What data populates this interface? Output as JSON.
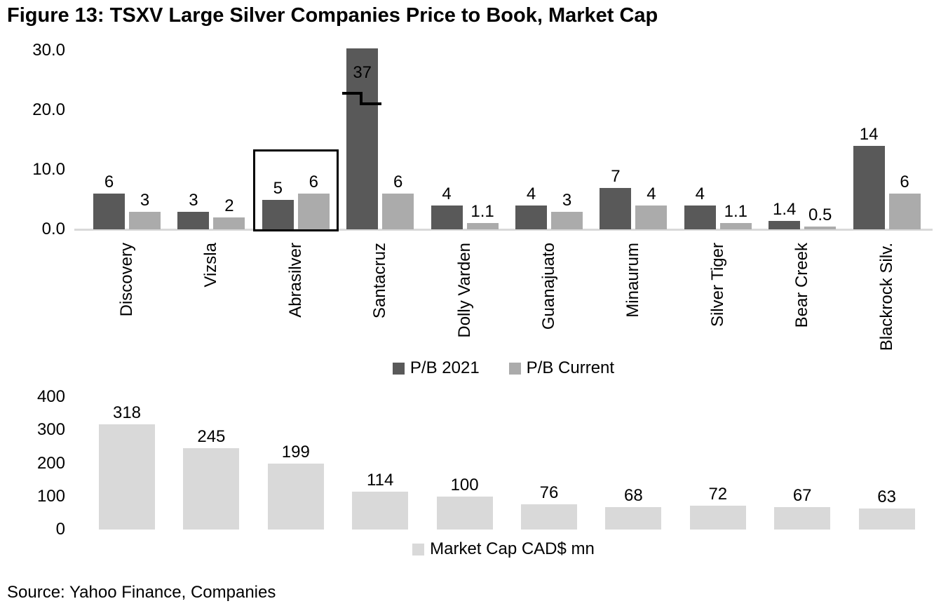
{
  "figure": {
    "title": "Figure 13: TSXV Large Silver Companies Price to Book, Market Cap",
    "source": "Source: Yahoo Finance, Companies"
  },
  "colors": {
    "pb_2021": "#595959",
    "pb_current": "#ababab",
    "market_cap": "#d9d9d9",
    "axis_line": "#d9d9d9",
    "text": "#000000",
    "annotation": "#000000"
  },
  "chart_data": [
    {
      "type": "bar",
      "title": "TSXV Large Silver Companies Price to Book",
      "categories": [
        "Discovery",
        "Vizsla",
        "Abrasilver",
        "Santacruz",
        "Dolly Varden",
        "Guanajuato",
        "Minaurum",
        "Silver Tiger",
        "Bear Creek",
        "Blackrock Silv."
      ],
      "series": [
        {
          "name": "P/B 2021",
          "color_key": "pb_2021",
          "values": [
            6,
            3,
            5,
            37,
            4,
            4,
            7,
            4,
            1.4,
            14
          ],
          "labels": [
            "6",
            "3",
            "5",
            "37",
            "4",
            "4",
            "7",
            "4",
            "1.4",
            "14"
          ]
        },
        {
          "name": "P/B Current",
          "color_key": "pb_current",
          "values": [
            3,
            2,
            6,
            6,
            1.1,
            3,
            4,
            1.1,
            0.5,
            6
          ],
          "labels": [
            "3",
            "2",
            "6",
            "6",
            "1.1",
            "3",
            "4",
            "1.1",
            "0.5",
            "6"
          ]
        }
      ],
      "ylim": [
        0,
        30
      ],
      "yticks": [
        {
          "value": 0,
          "label": "0.0"
        },
        {
          "value": 10,
          "label": "10.0"
        },
        {
          "value": 20,
          "label": "20.0"
        },
        {
          "value": 30,
          "label": "30.0"
        }
      ],
      "grid": false,
      "legend_position": "bottom",
      "x_tick_labels_visible": true,
      "annotations": {
        "highlight_box": {
          "category": "Abrasilver",
          "note": "black rectangle drawn around both Abrasilver bars and their labels"
        },
        "axis_break": {
          "category": "Santacruz",
          "series": "P/B 2021",
          "note": "bar exceeds axis maximum, clipped at top with break mark; value label 37 shown inside bar"
        }
      }
    },
    {
      "type": "bar",
      "title": "Market Cap",
      "categories": [
        "Discovery",
        "Vizsla",
        "Abrasilver",
        "Santacruz",
        "Dolly Varden",
        "Guanajuato",
        "Minaurum",
        "Silver Tiger",
        "Bear Creek",
        "Blackrock Silv."
      ],
      "series": [
        {
          "name": "Market Cap CAD$ mn",
          "color_key": "market_cap",
          "values": [
            318,
            245,
            199,
            114,
            100,
            76,
            68,
            72,
            67,
            63
          ],
          "labels": [
            "318",
            "245",
            "199",
            "114",
            "100",
            "76",
            "68",
            "72",
            "67",
            "63"
          ]
        }
      ],
      "ylim": [
        0,
        400
      ],
      "yticks": [
        {
          "value": 0,
          "label": "0"
        },
        {
          "value": 100,
          "label": "100"
        },
        {
          "value": 200,
          "label": "200"
        },
        {
          "value": 300,
          "label": "300"
        },
        {
          "value": 400,
          "label": "400"
        }
      ],
      "grid": false,
      "legend_position": "bottom",
      "x_tick_labels_visible": false
    }
  ]
}
